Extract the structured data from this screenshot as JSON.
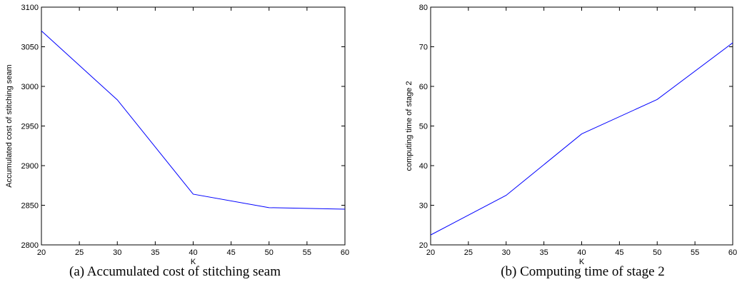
{
  "chart_data": [
    {
      "type": "line",
      "xlabel": "K",
      "ylabel": "Accumulated cost of stitching seam",
      "caption": "(a) Accumulated cost of stitching seam",
      "xlim": [
        20,
        60
      ],
      "ylim": [
        2800,
        3100
      ],
      "xticks": [
        20,
        25,
        30,
        35,
        40,
        45,
        50,
        55,
        60
      ],
      "yticks": [
        2800,
        2850,
        2900,
        2950,
        3000,
        3050,
        3100
      ],
      "grid": false,
      "series": [
        {
          "color": "#0000ff",
          "x": [
            20,
            30,
            40,
            50,
            60
          ],
          "y": [
            3070,
            2983,
            2864,
            2847,
            2845
          ]
        }
      ]
    },
    {
      "type": "line",
      "xlabel": "K",
      "ylabel": "computing time of stage 2",
      "caption": "(b) Computing time of stage 2",
      "xlim": [
        20,
        60
      ],
      "ylim": [
        20,
        80
      ],
      "xticks": [
        20,
        25,
        30,
        35,
        40,
        45,
        50,
        55,
        60
      ],
      "yticks": [
        20,
        30,
        40,
        50,
        60,
        70,
        80
      ],
      "grid": false,
      "series": [
        {
          "color": "#0000ff",
          "x": [
            20,
            30,
            40,
            50,
            60
          ],
          "y": [
            22.5,
            32.5,
            48,
            56.7,
            71
          ]
        }
      ]
    }
  ]
}
